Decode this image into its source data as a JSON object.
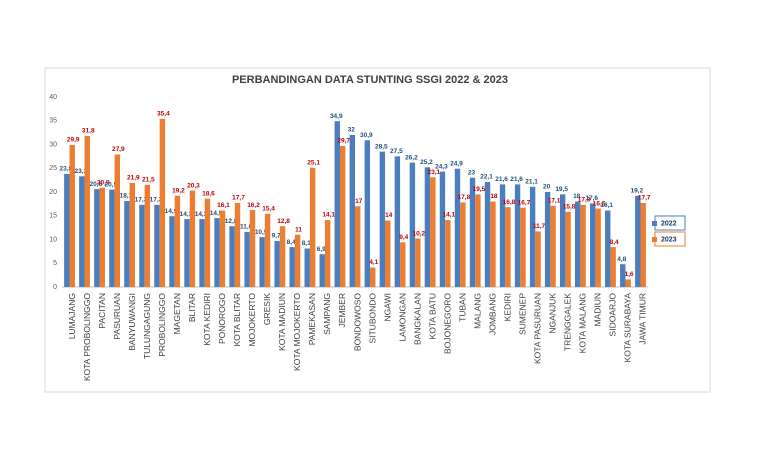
{
  "chart_data": {
    "type": "bar",
    "title": "PERBANDINGAN DATA STUNTING SSGI 2022 & 2023",
    "categories": [
      "LUMAJANG",
      "KOTA PROBOLINGGO",
      "PACITAN",
      "PASURUAN",
      "BANYUWANGI",
      "TULUNGAGUNG",
      "PROBOLINGGO",
      "MAGETAN",
      "BLITAR",
      "KOTA KEDIRI",
      "PONOROGO",
      "KOTA BLITAR",
      "MOJOKERTO",
      "GRESIK",
      "KOTA MADIUN",
      "KOTA MOJOKERTO",
      "PAMEKASAN",
      "SAMPANG",
      "JEMBER",
      "BONDOWOSO",
      "SITUBONDO",
      "NGAWI",
      "LAMONGAN",
      "BANGKALAN",
      "KOTA BATU",
      "BOJONEGORO",
      "TUBAN",
      "MALANG",
      "JOMBANG",
      "KEDIRI",
      "SUMENEP",
      "KOTA PASURUAN",
      "NGANJUK",
      "TRENGGALEK",
      "KOTA MALANG",
      "MADIUN",
      "SIDOARJO",
      "KOTA SURABAYA",
      "JAWA TIMUR"
    ],
    "series": [
      {
        "name": "2022",
        "color": "#4a7ebf",
        "label_color": "#1f4e79",
        "values": [
          23.8,
          23.3,
          20.6,
          20.5,
          18.1,
          17.3,
          17.3,
          14.9,
          14.3,
          14.3,
          14.5,
          12.8,
          11.6,
          10.5,
          9.7,
          8.4,
          8.1,
          6.9,
          34.9,
          32,
          30.9,
          28.5,
          27.5,
          26.2,
          25.2,
          24.3,
          24.9,
          23,
          22.1,
          21.6,
          21.6,
          21.1,
          20,
          19.5,
          18,
          17.6,
          16.1,
          4.8,
          19.2
        ],
        "value_labels": [
          "23,8",
          "23,3",
          "20,6",
          "20,5",
          "18,1",
          "17,3",
          "17,3",
          "14,9",
          "14,3",
          "14,3",
          "14,5",
          "12,8",
          "11,6",
          "10,5",
          "9,7",
          "8,4",
          "8,1",
          "6,9",
          "34,9",
          "32",
          "30,9",
          "28,5",
          "27,5",
          "26,2",
          "25,2",
          "24,3",
          "24,9",
          "23",
          "22,1",
          "21,6",
          "21,6",
          "21,1",
          "20",
          "19,5",
          "18",
          "17,6",
          "16,1",
          "4,8",
          "19,2"
        ]
      },
      {
        "name": "2023",
        "color": "#ed7d31",
        "label_color": "#c00000",
        "values": [
          29.9,
          31.8,
          20.9,
          27.9,
          21.9,
          21.5,
          35.4,
          19.2,
          20.3,
          18.6,
          16.1,
          17.7,
          16.2,
          15.4,
          12.8,
          11,
          25.1,
          14.1,
          29.7,
          17,
          4.1,
          14,
          9.4,
          10.2,
          23.1,
          14.1,
          17.8,
          19.5,
          18,
          16.8,
          16.7,
          11.7,
          17.1,
          15.8,
          17.3,
          16.5,
          8.4,
          1.6,
          17.7
        ],
        "value_labels": [
          "29,9",
          "31,8",
          "20,9",
          "27,9",
          "21,9",
          "21,5",
          "35,4",
          "19,2",
          "20,3",
          "18,6",
          "16,1",
          "17,7",
          "16,2",
          "15,4",
          "12,8",
          "11",
          "25,1",
          "14,1",
          "29,7",
          "17",
          "4,1",
          "14",
          "9,4",
          "10,2",
          "23,1",
          "14,1",
          "17,8",
          "19,5",
          "18",
          "16,8",
          "16,7",
          "11,7",
          "17,1",
          "15,8",
          "17,3",
          "16,5",
          "8,4",
          "1,6",
          "17,7"
        ]
      }
    ],
    "ylim": [
      0,
      40
    ],
    "yticks": [
      0,
      5,
      10,
      15,
      20,
      25,
      30,
      35,
      40
    ],
    "grid": false,
    "legend": "right"
  }
}
